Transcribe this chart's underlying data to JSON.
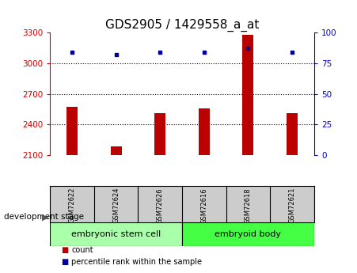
{
  "title": "GDS2905 / 1429558_a_at",
  "samples": [
    "GSM72622",
    "GSM72624",
    "GSM72626",
    "GSM72616",
    "GSM72618",
    "GSM72621"
  ],
  "group_names": [
    "embryonic stem cell",
    "embryoid body"
  ],
  "group_colors": [
    "#AAFFAA",
    "#44FF44"
  ],
  "group_sample_counts": [
    3,
    3
  ],
  "count_values": [
    2570,
    2185,
    2510,
    2555,
    3280,
    2510
  ],
  "percentile_values": [
    84,
    82,
    84,
    84,
    87,
    84
  ],
  "ylim_left": [
    2100,
    3300
  ],
  "ylim_right": [
    0,
    100
  ],
  "yticks_left": [
    2100,
    2400,
    2700,
    3000,
    3300
  ],
  "yticks_right": [
    0,
    25,
    50,
    75,
    100
  ],
  "bar_color": "#BB0000",
  "dot_color": "#000099",
  "bar_width": 0.25,
  "group_label": "development stage",
  "legend_count_label": "count",
  "legend_percentile_label": "percentile rank within the sample",
  "title_fontsize": 11,
  "axis_color_left": "#CC0000",
  "axis_color_right": "#0000CC",
  "tick_label_fontsize": 7.5,
  "sample_label_fontsize": 6,
  "group_fontsize": 8
}
